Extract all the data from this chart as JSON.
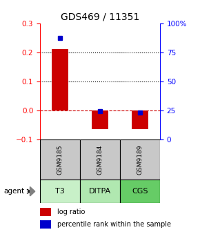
{
  "title": "GDS469 / 11351",
  "samples": [
    "GSM9185",
    "GSM9184",
    "GSM9189"
  ],
  "agents": [
    "T3",
    "DITPA",
    "CGS"
  ],
  "log_ratios": [
    0.21,
    -0.065,
    -0.065
  ],
  "percentile_ranks": [
    87,
    24,
    23
  ],
  "ylim_left": [
    -0.1,
    0.3
  ],
  "ylim_right": [
    0,
    100
  ],
  "left_ticks": [
    -0.1,
    0.0,
    0.1,
    0.2,
    0.3
  ],
  "right_ticks": [
    0,
    25,
    50,
    75,
    100
  ],
  "right_tick_labels": [
    "0",
    "25",
    "50",
    "75",
    "100%"
  ],
  "hline_dotted": [
    0.1,
    0.2
  ],
  "hline_dashed": 0.0,
  "bar_color": "#cc0000",
  "dot_color": "#0000cc",
  "gsm_bg": "#c8c8c8",
  "agent_colors": [
    "#c8f0c8",
    "#b0e8b0",
    "#66cc66"
  ],
  "legend_bar_color": "#cc0000",
  "legend_dot_color": "#0000cc"
}
